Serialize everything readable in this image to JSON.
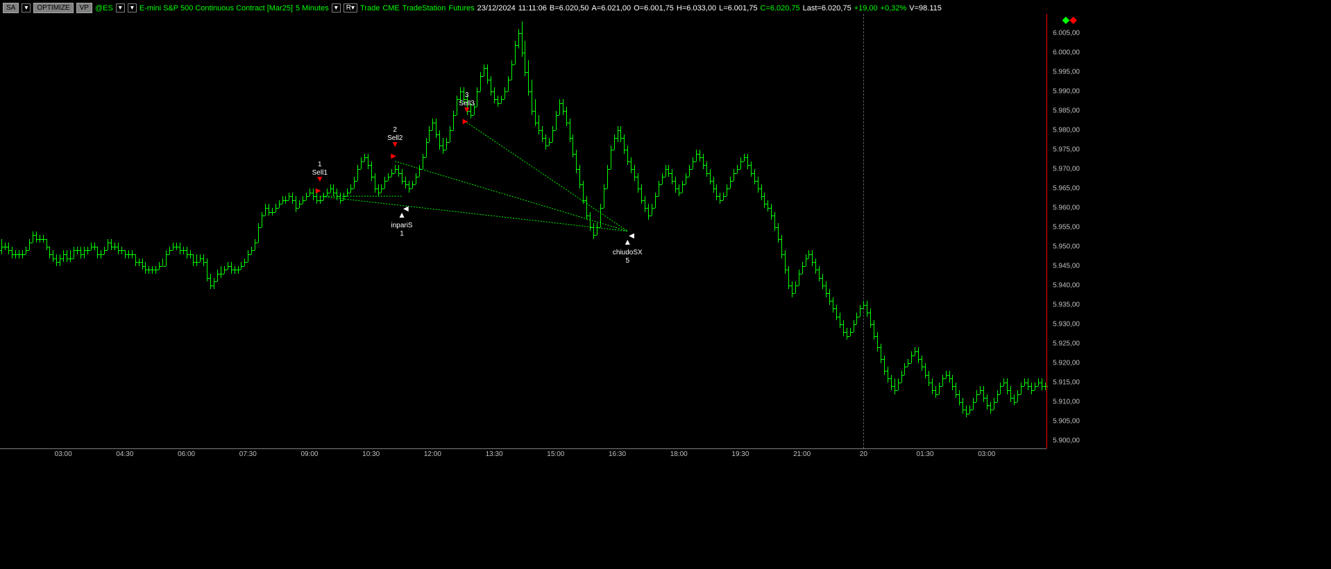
{
  "toolbar": {
    "sa_label": "SA",
    "optimize_label": "OPTIMIZE",
    "vp_label": "VP",
    "symbol": "@ES",
    "description": "E-mini S&P 500 Continuous Contract [Mar25]",
    "interval": "5 Minutes",
    "r_label": "R",
    "trade_label": "Trade",
    "exchange": "CME",
    "provider": "TradeStation",
    "type": "Futures",
    "date": "23/12/2024",
    "time": "11:11:06",
    "bid_label": "B=6.020,50",
    "ask_label": "A=6.021,00",
    "open_label": "O=6.001,75",
    "high_label": "H=6.033,00",
    "low_label": "L=6.001,75",
    "close_label": "C=6.020,75",
    "last_label": "Last=6.020,75",
    "change_label": "+19,00",
    "change_pct_label": "+0,32%",
    "volume_label": "V=98.115"
  },
  "chart": {
    "type": "ohlc",
    "background_color": "#000000",
    "up_color": "#00ff00",
    "down_color": "#00ff00",
    "text_color": "#c0c0c0",
    "axis_line_color": "#ff0000",
    "ylim": [
      5898,
      6010
    ],
    "ytick_step": 5,
    "ytick_labels": [
      "6.005,00",
      "6.000,00",
      "5.995,00",
      "5.990,00",
      "5.985,00",
      "5.980,00",
      "5.975,00",
      "5.970,00",
      "5.965,00",
      "5.960,00",
      "5.955,00",
      "5.950,00",
      "5.945,00",
      "5.940,00",
      "5.935,00",
      "5.930,00",
      "5.925,00",
      "5.920,00",
      "5.915,00",
      "5.910,00",
      "5.905,00",
      "5.900,00"
    ],
    "ytick_values": [
      6005,
      6000,
      5995,
      5990,
      5985,
      5980,
      5975,
      5970,
      5965,
      5960,
      5955,
      5950,
      5945,
      5940,
      5935,
      5930,
      5925,
      5920,
      5915,
      5910,
      5905,
      5900
    ],
    "xtick_labels": [
      "03:00",
      "04:30",
      "06:00",
      "07:30",
      "09:00",
      "10:30",
      "12:00",
      "13:30",
      "15:00",
      "16:30",
      "18:00",
      "19:30",
      "21:00",
      "20",
      "01:30",
      "03:00"
    ],
    "xtick_positions": [
      18,
      36,
      54,
      72,
      90,
      108,
      126,
      144,
      162,
      180,
      198,
      216,
      234,
      252,
      270,
      288
    ],
    "vline_position": 252,
    "n_bars": 306,
    "bars_o": [
      5949,
      5950,
      5950,
      5949,
      5948,
      5948,
      5948,
      5948,
      5949,
      5951,
      5953,
      5952,
      5952,
      5952,
      5950,
      5948,
      5947,
      5946,
      5947,
      5948,
      5947,
      5947,
      5949,
      5949,
      5948,
      5949,
      5949,
      5950,
      5950,
      5948,
      5948,
      5949,
      5951,
      5950,
      5950,
      5949,
      5949,
      5948,
      5948,
      5948,
      5946,
      5946,
      5945,
      5944,
      5944,
      5944,
      5944,
      5945,
      5945,
      5948,
      5949,
      5950,
      5950,
      5949,
      5949,
      5948,
      5948,
      5946,
      5946,
      5947,
      5946,
      5942,
      5940,
      5941,
      5943,
      5943,
      5944,
      5945,
      5944,
      5944,
      5944,
      5945,
      5946,
      5948,
      5949,
      5951,
      5955,
      5958,
      5960,
      5959,
      5959,
      5960,
      5961,
      5962,
      5962,
      5963,
      5962,
      5960,
      5961,
      5962,
      5963,
      5964,
      5963,
      5962,
      5962,
      5963,
      5964,
      5965,
      5964,
      5963,
      5962,
      5963,
      5964,
      5965,
      5967,
      5970,
      5972,
      5973,
      5971,
      5968,
      5965,
      5964,
      5965,
      5967,
      5968,
      5969,
      5970,
      5969,
      5967,
      5966,
      5965,
      5966,
      5968,
      5970,
      5973,
      5977,
      5980,
      5982,
      5979,
      5976,
      5975,
      5977,
      5980,
      5984,
      5988,
      5990,
      5988,
      5985,
      5984,
      5986,
      5990,
      5994,
      5996,
      5993,
      5990,
      5988,
      5987,
      5988,
      5990,
      5993,
      5997,
      6002,
      6005,
      6000,
      5995,
      5990,
      5985,
      5982,
      5980,
      5978,
      5976,
      5977,
      5980,
      5984,
      5987,
      5985,
      5982,
      5978,
      5974,
      5970,
      5966,
      5962,
      5958,
      5955,
      5953,
      5955,
      5960,
      5965,
      5970,
      5975,
      5978,
      5980,
      5978,
      5975,
      5972,
      5970,
      5968,
      5965,
      5962,
      5960,
      5958,
      5960,
      5963,
      5966,
      5968,
      5970,
      5969,
      5967,
      5965,
      5964,
      5966,
      5968,
      5970,
      5972,
      5974,
      5973,
      5971,
      5969,
      5967,
      5965,
      5963,
      5962,
      5963,
      5965,
      5967,
      5969,
      5970,
      5972,
      5973,
      5971,
      5969,
      5967,
      5965,
      5963,
      5961,
      5960,
      5958,
      5955,
      5952,
      5948,
      5944,
      5940,
      5938,
      5940,
      5943,
      5945,
      5947,
      5948,
      5946,
      5944,
      5942,
      5940,
      5938,
      5936,
      5934,
      5932,
      5930,
      5928,
      5927,
      5928,
      5930,
      5932,
      5934,
      5935,
      5933,
      5930,
      5927,
      5924,
      5921,
      5918,
      5916,
      5914,
      5913,
      5915,
      5917,
      5919,
      5920,
      5922,
      5923,
      5921,
      5919,
      5917,
      5915,
      5913,
      5912,
      5914,
      5916,
      5917,
      5916,
      5914,
      5912,
      5910,
      5908,
      5907,
      5908,
      5910,
      5912,
      5913,
      5911,
      5909,
      5908,
      5910,
      5912,
      5914,
      5915,
      5913,
      5911,
      5910,
      5912,
      5914,
      5915,
      5914,
      5913,
      5914,
      5915,
      5914
    ],
    "bars_h": [
      5952,
      5951,
      5951,
      5950,
      5949,
      5949,
      5949,
      5950,
      5952,
      5954,
      5954,
      5953,
      5953,
      5952,
      5950,
      5949,
      5948,
      5948,
      5949,
      5949,
      5949,
      5950,
      5950,
      5950,
      5950,
      5950,
      5951,
      5951,
      5950,
      5949,
      5950,
      5952,
      5952,
      5951,
      5951,
      5950,
      5949,
      5949,
      5949,
      5948,
      5947,
      5947,
      5946,
      5945,
      5945,
      5945,
      5946,
      5947,
      5949,
      5950,
      5951,
      5951,
      5951,
      5950,
      5950,
      5949,
      5948,
      5948,
      5948,
      5948,
      5947,
      5943,
      5942,
      5944,
      5945,
      5945,
      5946,
      5946,
      5945,
      5945,
      5946,
      5947,
      5949,
      5950,
      5952,
      5956,
      5959,
      5961,
      5961,
      5960,
      5961,
      5962,
      5963,
      5963,
      5964,
      5964,
      5963,
      5962,
      5963,
      5964,
      5965,
      5965,
      5964,
      5963,
      5964,
      5965,
      5966,
      5966,
      5965,
      5964,
      5964,
      5965,
      5966,
      5968,
      5971,
      5973,
      5974,
      5974,
      5972,
      5969,
      5966,
      5966,
      5968,
      5969,
      5970,
      5971,
      5971,
      5970,
      5968,
      5967,
      5967,
      5969,
      5971,
      5974,
      5978,
      5981,
      5983,
      5983,
      5980,
      5978,
      5978,
      5981,
      5985,
      5989,
      5991,
      5991,
      5989,
      5987,
      5987,
      5991,
      5995,
      5997,
      5997,
      5994,
      5991,
      5989,
      5989,
      5991,
      5994,
      5998,
      6003,
      6006,
      6008,
      6003,
      5998,
      5993,
      5988,
      5984,
      5981,
      5979,
      5978,
      5981,
      5985,
      5988,
      5988,
      5986,
      5983,
      5979,
      5975,
      5971,
      5967,
      5963,
      5959,
      5956,
      5956,
      5961,
      5966,
      5971,
      5976,
      5979,
      5981,
      5981,
      5979,
      5976,
      5973,
      5971,
      5969,
      5966,
      5963,
      5961,
      5961,
      5964,
      5967,
      5969,
      5971,
      5971,
      5970,
      5968,
      5966,
      5967,
      5969,
      5971,
      5973,
      5975,
      5975,
      5974,
      5972,
      5970,
      5968,
      5966,
      5964,
      5964,
      5966,
      5968,
      5970,
      5971,
      5973,
      5974,
      5974,
      5972,
      5970,
      5968,
      5966,
      5964,
      5962,
      5961,
      5959,
      5956,
      5953,
      5949,
      5945,
      5941,
      5941,
      5944,
      5946,
      5948,
      5949,
      5949,
      5947,
      5945,
      5943,
      5941,
      5939,
      5937,
      5935,
      5933,
      5931,
      5929,
      5929,
      5931,
      5933,
      5935,
      5936,
      5936,
      5934,
      5931,
      5928,
      5925,
      5922,
      5919,
      5917,
      5916,
      5916,
      5918,
      5920,
      5921,
      5923,
      5924,
      5924,
      5922,
      5920,
      5918,
      5916,
      5914,
      5915,
      5917,
      5918,
      5918,
      5917,
      5915,
      5913,
      5911,
      5909,
      5909,
      5911,
      5913,
      5914,
      5914,
      5912,
      5910,
      5911,
      5913,
      5915,
      5916,
      5916,
      5914,
      5912,
      5913,
      5915,
      5916,
      5916,
      5915,
      5915,
      5916,
      5916,
      5915
    ],
    "bars_l": [
      5948,
      5949,
      5948,
      5947,
      5947,
      5947,
      5947,
      5948,
      5949,
      5951,
      5951,
      5951,
      5951,
      5949,
      5947,
      5946,
      5945,
      5945,
      5946,
      5946,
      5946,
      5947,
      5948,
      5947,
      5947,
      5948,
      5949,
      5949,
      5947,
      5947,
      5948,
      5949,
      5949,
      5949,
      5948,
      5948,
      5947,
      5947,
      5947,
      5945,
      5945,
      5944,
      5943,
      5943,
      5943,
      5943,
      5944,
      5945,
      5945,
      5948,
      5949,
      5949,
      5948,
      5948,
      5947,
      5947,
      5945,
      5945,
      5946,
      5945,
      5941,
      5939,
      5939,
      5941,
      5942,
      5943,
      5944,
      5943,
      5943,
      5943,
      5944,
      5945,
      5946,
      5948,
      5949,
      5951,
      5955,
      5958,
      5958,
      5958,
      5959,
      5960,
      5961,
      5961,
      5962,
      5961,
      5959,
      5960,
      5961,
      5962,
      5963,
      5962,
      5961,
      5961,
      5962,
      5963,
      5964,
      5963,
      5962,
      5961,
      5962,
      5963,
      5964,
      5965,
      5967,
      5970,
      5972,
      5970,
      5967,
      5964,
      5963,
      5964,
      5965,
      5967,
      5968,
      5969,
      5968,
      5966,
      5965,
      5964,
      5965,
      5966,
      5968,
      5970,
      5973,
      5977,
      5980,
      5978,
      5975,
      5974,
      5975,
      5977,
      5980,
      5984,
      5987,
      5987,
      5984,
      5983,
      5984,
      5986,
      5990,
      5994,
      5992,
      5989,
      5987,
      5986,
      5987,
      5988,
      5990,
      5993,
      5997,
      6001,
      5999,
      5994,
      5989,
      5984,
      5981,
      5979,
      5977,
      5975,
      5976,
      5977,
      5980,
      5984,
      5984,
      5981,
      5977,
      5973,
      5969,
      5965,
      5961,
      5957,
      5954,
      5952,
      5953,
      5955,
      5960,
      5965,
      5970,
      5975,
      5977,
      5977,
      5974,
      5971,
      5969,
      5967,
      5964,
      5961,
      5959,
      5957,
      5958,
      5960,
      5963,
      5966,
      5968,
      5968,
      5966,
      5964,
      5963,
      5964,
      5966,
      5968,
      5970,
      5972,
      5972,
      5970,
      5968,
      5966,
      5964,
      5962,
      5961,
      5962,
      5963,
      5965,
      5967,
      5969,
      5970,
      5972,
      5970,
      5968,
      5966,
      5964,
      5962,
      5960,
      5959,
      5957,
      5954,
      5951,
      5947,
      5943,
      5939,
      5937,
      5938,
      5940,
      5943,
      5945,
      5947,
      5945,
      5943,
      5941,
      5939,
      5937,
      5935,
      5933,
      5931,
      5929,
      5927,
      5926,
      5927,
      5928,
      5930,
      5932,
      5934,
      5932,
      5929,
      5926,
      5923,
      5920,
      5917,
      5915,
      5913,
      5912,
      5913,
      5915,
      5917,
      5919,
      5920,
      5922,
      5920,
      5918,
      5916,
      5914,
      5912,
      5911,
      5912,
      5914,
      5916,
      5915,
      5913,
      5911,
      5909,
      5907,
      5906,
      5907,
      5908,
      5910,
      5912,
      5910,
      5908,
      5907,
      5908,
      5910,
      5912,
      5914,
      5912,
      5910,
      5909,
      5910,
      5912,
      5914,
      5913,
      5912,
      5913,
      5914,
      5913,
      5913
    ],
    "bars_c": [
      5950,
      5950,
      5949,
      5948,
      5948,
      5948,
      5948,
      5949,
      5951,
      5953,
      5952,
      5952,
      5952,
      5950,
      5948,
      5947,
      5946,
      5947,
      5948,
      5947,
      5947,
      5949,
      5949,
      5948,
      5949,
      5949,
      5950,
      5950,
      5948,
      5948,
      5949,
      5951,
      5950,
      5950,
      5949,
      5949,
      5948,
      5948,
      5948,
      5946,
      5946,
      5945,
      5944,
      5944,
      5944,
      5944,
      5945,
      5945,
      5948,
      5949,
      5950,
      5950,
      5949,
      5949,
      5948,
      5948,
      5946,
      5946,
      5947,
      5946,
      5942,
      5940,
      5941,
      5943,
      5943,
      5944,
      5945,
      5944,
      5944,
      5944,
      5945,
      5946,
      5948,
      5949,
      5951,
      5955,
      5958,
      5960,
      5959,
      5959,
      5960,
      5961,
      5962,
      5962,
      5963,
      5962,
      5960,
      5961,
      5962,
      5963,
      5964,
      5963,
      5962,
      5962,
      5963,
      5964,
      5965,
      5964,
      5963,
      5962,
      5963,
      5964,
      5965,
      5967,
      5970,
      5972,
      5973,
      5971,
      5968,
      5965,
      5964,
      5965,
      5967,
      5968,
      5969,
      5970,
      5969,
      5967,
      5966,
      5965,
      5966,
      5968,
      5970,
      5973,
      5977,
      5980,
      5982,
      5979,
      5976,
      5975,
      5977,
      5980,
      5984,
      5988,
      5990,
      5988,
      5985,
      5984,
      5986,
      5990,
      5994,
      5996,
      5993,
      5990,
      5988,
      5987,
      5988,
      5990,
      5993,
      5997,
      6002,
      6005,
      6000,
      5995,
      5990,
      5985,
      5982,
      5980,
      5978,
      5976,
      5977,
      5980,
      5984,
      5987,
      5985,
      5982,
      5978,
      5974,
      5970,
      5966,
      5962,
      5958,
      5955,
      5953,
      5955,
      5960,
      5965,
      5970,
      5975,
      5978,
      5980,
      5978,
      5975,
      5972,
      5970,
      5968,
      5965,
      5962,
      5960,
      5958,
      5960,
      5963,
      5966,
      5968,
      5970,
      5969,
      5967,
      5965,
      5964,
      5966,
      5968,
      5970,
      5972,
      5974,
      5973,
      5971,
      5969,
      5967,
      5965,
      5963,
      5962,
      5963,
      5965,
      5967,
      5969,
      5970,
      5972,
      5973,
      5971,
      5969,
      5967,
      5965,
      5963,
      5961,
      5960,
      5958,
      5955,
      5952,
      5948,
      5944,
      5940,
      5938,
      5940,
      5943,
      5945,
      5947,
      5948,
      5946,
      5944,
      5942,
      5940,
      5938,
      5936,
      5934,
      5932,
      5930,
      5928,
      5927,
      5928,
      5930,
      5932,
      5934,
      5935,
      5933,
      5930,
      5927,
      5924,
      5921,
      5918,
      5916,
      5914,
      5913,
      5915,
      5917,
      5919,
      5920,
      5922,
      5923,
      5921,
      5919,
      5917,
      5915,
      5913,
      5912,
      5914,
      5916,
      5917,
      5916,
      5914,
      5912,
      5910,
      5908,
      5907,
      5908,
      5910,
      5912,
      5913,
      5911,
      5909,
      5908,
      5910,
      5912,
      5914,
      5915,
      5913,
      5911,
      5910,
      5912,
      5914,
      5915,
      5914,
      5913,
      5914,
      5915,
      5914,
      5914
    ]
  },
  "markers": {
    "sell1": {
      "bar": 93,
      "price": 5966,
      "label_top": "1",
      "label": "Sell1",
      "color": "#ff0000",
      "type": "down"
    },
    "sell2": {
      "bar": 115,
      "price": 5975,
      "label_top": "2",
      "label": "Sell2",
      "color": "#ff0000",
      "type": "down"
    },
    "sell3": {
      "bar": 136,
      "price": 5984,
      "label_top": "3",
      "label": "Sell3",
      "color": "#ff0000",
      "type": "down"
    },
    "inparis": {
      "bar": 117,
      "price": 5960,
      "label": "inpariS",
      "label_bottom": "1",
      "color": "#ffffff",
      "type": "up"
    },
    "chiudosx": {
      "bar": 183,
      "price": 5953,
      "label": "chiudoSX",
      "label_bottom": "5",
      "color": "#ffffff",
      "type": "up"
    }
  },
  "trade_lines": {
    "color": "#00ff00",
    "style": "dotted",
    "lines": [
      {
        "from_bar": 93,
        "from_price": 5963,
        "to_bar": 117,
        "to_price": 5963
      },
      {
        "from_bar": 115,
        "from_price": 5972,
        "to_bar": 183,
        "to_price": 5954
      },
      {
        "from_bar": 136,
        "from_price": 5982,
        "to_bar": 183,
        "to_price": 5954
      },
      {
        "from_bar": 93,
        "from_price": 5963,
        "to_bar": 183,
        "to_price": 5954
      }
    ]
  }
}
